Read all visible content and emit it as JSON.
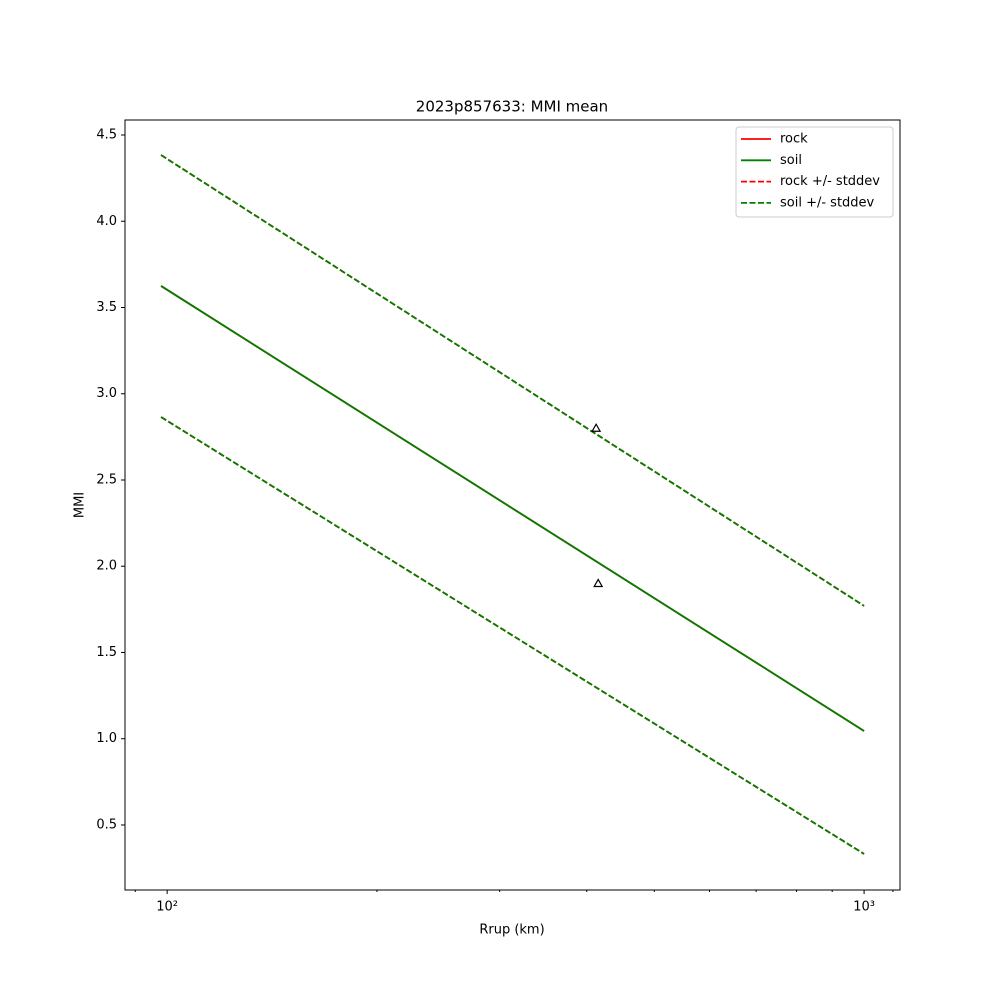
{
  "chart_data": {
    "type": "line",
    "title": "2023p857633: MMI mean",
    "x_label": "Rrup (km)",
    "y_label": "MMI",
    "x_scale": "log",
    "x": [
      98,
      1000
    ],
    "series": [
      {
        "name": "rock",
        "color": "#ff0000",
        "style": "solid",
        "values": [
          3.625,
          1.045
        ]
      },
      {
        "name": "soil",
        "color": "#008000",
        "style": "solid",
        "values": [
          3.625,
          1.045
        ]
      },
      {
        "name": "rock +/- stddev",
        "color": "#ff0000",
        "style": "dashed",
        "upper": [
          4.384,
          1.77
        ],
        "lower": [
          2.865,
          0.332
        ]
      },
      {
        "name": "soil +/- stddev",
        "color": "#008000",
        "style": "dashed",
        "upper": [
          4.384,
          1.77
        ],
        "lower": [
          2.865,
          0.332
        ]
      }
    ],
    "observations": {
      "marker": "triangle",
      "color": "#000000",
      "x": [
        412.6,
        415.4
      ],
      "y": [
        2.8,
        1.9
      ]
    },
    "xlim": [
      87,
      1126
    ],
    "xticks": [
      {
        "value": 100,
        "label": "10²"
      },
      {
        "value": 1000,
        "label": "10³"
      }
    ],
    "xminorticks": [
      90,
      200,
      300,
      400,
      500,
      600,
      700,
      800,
      900,
      1100
    ],
    "ylim": [
      0.123,
      4.587
    ],
    "yticks": [
      0.5,
      {
        "value": 1,
        "label": "1.0"
      },
      1.5,
      {
        "value": 2,
        "label": "2.0"
      },
      2.5,
      {
        "value": 3,
        "label": "3.0"
      },
      3.5,
      {
        "value": 4,
        "label": "4.0"
      },
      4.5
    ],
    "legend": "upper right",
    "grid": false
  }
}
